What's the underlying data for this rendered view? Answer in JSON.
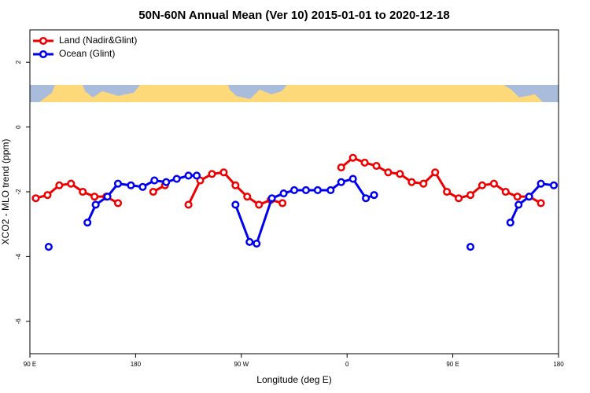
{
  "chart_data": {
    "type": "line",
    "title": "50N-60N Annual Mean (Ver 10)   2015-01-01 to 2020-12-18",
    "xlabel": "Longitude (deg E)",
    "ylabel": "XCO2 - MLO trend (ppm)",
    "xlim": [
      90,
      540
    ],
    "ylim": [
      -7,
      3
    ],
    "xticks": [
      {
        "value": 90,
        "label": "90 E"
      },
      180,
      {
        "value": 270,
        "label": "90 W"
      },
      {
        "value": 360,
        "label": "0"
      },
      {
        "value": 450,
        "label": "90 E"
      },
      {
        "value": 540,
        "label": "180"
      }
    ],
    "yticks": [
      -6,
      -4,
      -2,
      0,
      2
    ],
    "legend": "top-left",
    "series": [
      {
        "name": "Land (Nadir&Glint)",
        "color": "#ee0000",
        "x": [
          95,
          105,
          115,
          125,
          135,
          145,
          155,
          165,
          175,
          185,
          195,
          205,
          215,
          225,
          235,
          245,
          255,
          265,
          275,
          285,
          295,
          305,
          315,
          325,
          335,
          345,
          355,
          365,
          375,
          385,
          395,
          405,
          415,
          425,
          435,
          445,
          455,
          465,
          475,
          485,
          495,
          505,
          515,
          525
        ],
        "values": [
          -2.2,
          -2.1,
          -1.8,
          -1.75,
          -2.0,
          -2.15,
          -2.15,
          -2.35,
          null,
          null,
          -2.0,
          -1.8,
          null,
          -2.4,
          -1.65,
          -1.45,
          -1.4,
          -1.8,
          -2.15,
          -2.4,
          -2.25,
          -2.35,
          null,
          null,
          null,
          null,
          -1.25,
          -0.95,
          -1.1,
          -1.2,
          -1.4,
          -1.45,
          -1.7,
          -1.75,
          -1.4,
          -2.0,
          -2.2,
          -2.1,
          -1.8,
          -1.75,
          -2.0,
          -2.15,
          -2.15,
          -2.35
        ]
      },
      {
        "name": "Ocean (Glint)",
        "color": "#0000ee",
        "x": [
          106,
          120,
          139,
          146,
          156,
          165,
          176,
          186,
          196,
          206,
          215,
          225,
          232,
          250,
          265,
          277,
          283,
          296,
          306,
          315,
          325,
          335,
          346,
          355,
          365,
          376,
          383,
          420,
          465,
          480,
          499,
          506,
          515,
          525,
          536
        ],
        "values": [
          -3.7,
          null,
          -2.95,
          -2.4,
          -2.15,
          -1.75,
          -1.8,
          -1.85,
          -1.65,
          -1.7,
          -1.6,
          -1.5,
          -1.5,
          null,
          -2.4,
          -3.55,
          -3.6,
          -2.2,
          -2.05,
          -1.95,
          -1.95,
          -1.95,
          -1.95,
          -1.7,
          -1.6,
          -2.2,
          -2.1,
          null,
          -3.7,
          null,
          -2.95,
          -2.4,
          -2.15,
          -1.75,
          -1.8
        ]
      }
    ]
  }
}
